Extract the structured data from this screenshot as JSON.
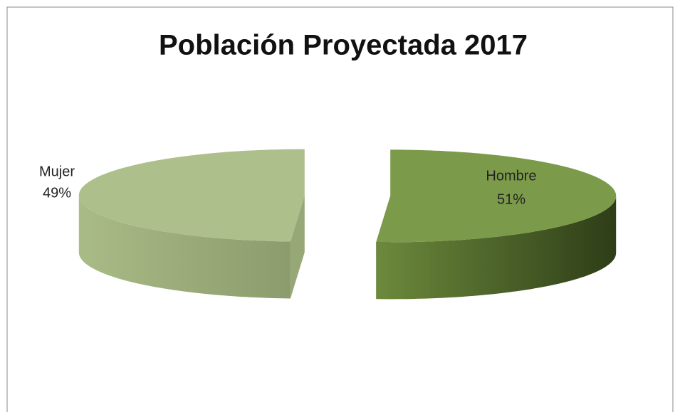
{
  "chart_data": {
    "type": "pie3d",
    "title": "Población Proyectada 2017",
    "categories": [
      "Hombre",
      "Mujer"
    ],
    "values": [
      51,
      49
    ],
    "value_labels": [
      "51%",
      "49%"
    ],
    "colors": [
      "#7b9b4a",
      "#adbf8b"
    ],
    "exploded": true
  }
}
